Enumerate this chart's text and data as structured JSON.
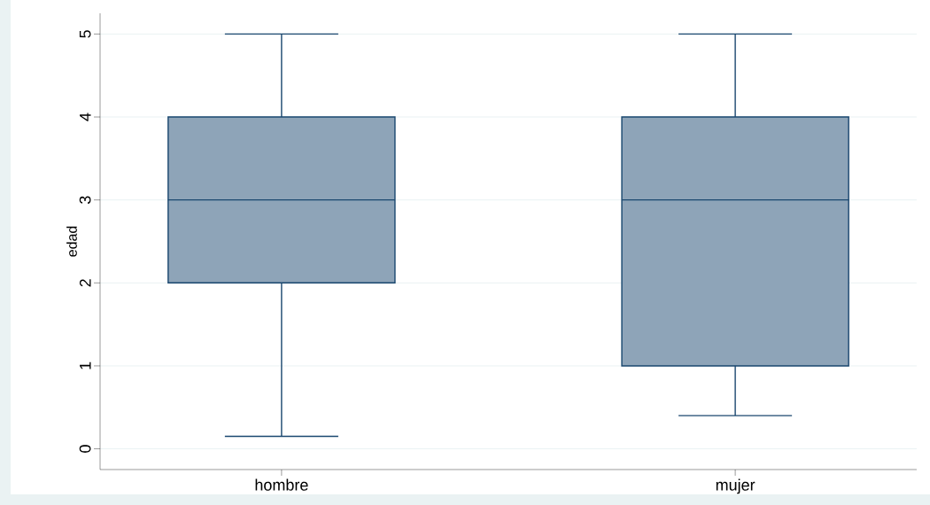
{
  "chart_data": {
    "type": "box",
    "ylabel": "edad",
    "categories": [
      "hombre",
      "mujer"
    ],
    "boxes": [
      {
        "low": 0.15,
        "q1": 2,
        "median": 3,
        "q3": 4,
        "high": 5
      },
      {
        "low": 0.4,
        "q1": 1,
        "median": 3,
        "q3": 4,
        "high": 5
      }
    ],
    "color": "#8ea4b8",
    "ylim": [
      -0.25,
      5.25
    ],
    "yticks": [
      0,
      1,
      2,
      3,
      4,
      5
    ],
    "grid": "y"
  }
}
